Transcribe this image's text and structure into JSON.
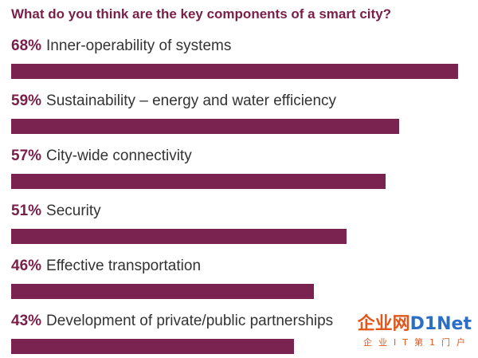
{
  "chart_data": {
    "type": "bar",
    "orientation": "horizontal",
    "title": "What do you think are the key components of a smart city?",
    "unit": "%",
    "xlim": [
      0,
      68
    ],
    "categories": [
      "Inner-operability of systems",
      "Sustainability – energy and water efficiency",
      "City-wide connectivity",
      "Security",
      "Effective transportation",
      "Development of private/public partnerships"
    ],
    "values": [
      68,
      59,
      57,
      51,
      46,
      43
    ],
    "value_labels": [
      "68%",
      "59%",
      "57%",
      "51%",
      "46%",
      "43%"
    ],
    "bar_color": "#7b2350",
    "label_color": "#7a1f49"
  },
  "watermark": {
    "main_cn": "企业网",
    "main_latin": "D1Net",
    "sub": "企业IT第1门户"
  }
}
